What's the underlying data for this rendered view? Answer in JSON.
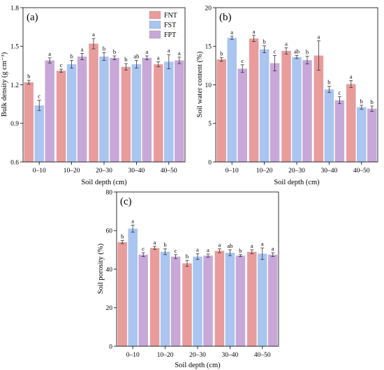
{
  "legend": [
    {
      "name": "FNT",
      "color": "#E89C9C"
    },
    {
      "name": "FST",
      "color": "#A9C5F0"
    },
    {
      "name": "FPT",
      "color": "#C8A8D8"
    }
  ],
  "chart_data": [
    {
      "panel": "(a)",
      "type": "bar",
      "xlabel": "Soil depth (cm)",
      "ylabel": "Bulk density (g cm⁻³)",
      "ylim": [
        0.6,
        1.8
      ],
      "yticks": [
        "0.6",
        "0.9",
        "1.2",
        "1.5",
        "1.8"
      ],
      "categories": [
        "0–10",
        "10–20",
        "20–30",
        "30–40",
        "40–50"
      ],
      "legend_position": "top-right",
      "series": [
        {
          "name": "FNT",
          "color": "#E89C9C",
          "values": [
            1.22,
            1.31,
            1.52,
            1.34,
            1.36
          ],
          "errors": [
            0.015,
            0.012,
            0.04,
            0.025,
            0.02
          ],
          "labels": [
            "b",
            "c",
            "a",
            "b",
            "a"
          ]
        },
        {
          "name": "FST",
          "color": "#A9C5F0",
          "values": [
            1.04,
            1.36,
            1.42,
            1.36,
            1.38
          ],
          "errors": [
            0.04,
            0.03,
            0.03,
            0.03,
            0.055
          ],
          "labels": [
            "c",
            "b",
            "b",
            "ab",
            "a"
          ]
        },
        {
          "name": "FPT",
          "color": "#C8A8D8",
          "values": [
            1.39,
            1.42,
            1.41,
            1.41,
            1.39
          ],
          "errors": [
            0.02,
            0.025,
            0.015,
            0.015,
            0.025
          ],
          "labels": [
            "a",
            "a",
            "b",
            "a",
            "a"
          ]
        }
      ]
    },
    {
      "panel": "(b)",
      "type": "bar",
      "xlabel": "Soil depth (cm)",
      "ylabel": "Soil water content (%)",
      "ylim": [
        0,
        20
      ],
      "yticks": [
        "0",
        "5",
        "10",
        "15",
        "20"
      ],
      "categories": [
        "0–10",
        "10–20",
        "20–30",
        "30–40",
        "40–50"
      ],
      "legend_position": "none",
      "series": [
        {
          "name": "FNT",
          "color": "#E89C9C",
          "values": [
            13.3,
            16.0,
            14.4,
            13.8,
            10.1
          ],
          "errors": [
            0.25,
            0.4,
            0.4,
            1.9,
            0.45
          ],
          "labels": [
            "b",
            "a",
            "a",
            "a",
            "a"
          ]
        },
        {
          "name": "FST",
          "color": "#A9C5F0",
          "values": [
            16.1,
            14.6,
            13.6,
            9.4,
            7.1
          ],
          "errors": [
            0.2,
            0.45,
            0.2,
            0.4,
            0.25
          ],
          "labels": [
            "a",
            "b",
            "ab",
            "b",
            "b"
          ]
        },
        {
          "name": "FPT",
          "color": "#C8A8D8",
          "values": [
            12.1,
            12.8,
            13.2,
            8.0,
            6.9
          ],
          "errors": [
            0.5,
            1.0,
            0.5,
            0.45,
            0.35
          ],
          "labels": [
            "c",
            "c",
            "b",
            "c",
            "b"
          ]
        }
      ]
    },
    {
      "panel": "(c)",
      "type": "bar",
      "xlabel": "Soil depth (cm)",
      "ylabel": "Soil porosity (%)",
      "ylim": [
        0,
        80
      ],
      "yticks": [
        "0",
        "20",
        "40",
        "60",
        "80"
      ],
      "categories": [
        "0–10",
        "10–20",
        "20–30",
        "30–40",
        "40–50"
      ],
      "legend_position": "none",
      "series": [
        {
          "name": "FNT",
          "color": "#E89C9C",
          "values": [
            54.0,
            51.0,
            43.0,
            49.5,
            49.0
          ],
          "errors": [
            0.8,
            0.8,
            1.5,
            1.0,
            1.0
          ],
          "labels": [
            "b",
            "a",
            "b",
            "a",
            "a"
          ]
        },
        {
          "name": "FST",
          "color": "#A9C5F0",
          "values": [
            61.0,
            49.0,
            46.5,
            48.5,
            48.0
          ],
          "errors": [
            1.8,
            1.5,
            1.5,
            1.5,
            3.0
          ],
          "labels": [
            "a",
            "b",
            "a",
            "ab",
            "a"
          ]
        },
        {
          "name": "FPT",
          "color": "#C8A8D8",
          "values": [
            47.5,
            46.5,
            47.0,
            47.0,
            47.5
          ],
          "errors": [
            1.0,
            1.0,
            0.8,
            0.5,
            1.0
          ],
          "labels": [
            "c",
            "c",
            "a",
            "b",
            "a"
          ]
        }
      ]
    }
  ]
}
